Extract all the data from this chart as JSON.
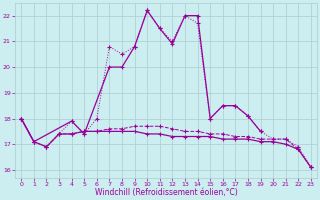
{
  "x": [
    0,
    1,
    2,
    3,
    4,
    5,
    6,
    7,
    8,
    9,
    10,
    11,
    12,
    13,
    14,
    15,
    16,
    17,
    18,
    19,
    20,
    21,
    22,
    23
  ],
  "line1_solid": [
    [
      0,
      18.0
    ],
    [
      1,
      17.1
    ],
    [
      4,
      17.9
    ],
    [
      5,
      17.4
    ],
    [
      7,
      20.0
    ],
    [
      8,
      20.0
    ],
    [
      9,
      20.8
    ],
    [
      10,
      22.2
    ],
    [
      11,
      21.5
    ],
    [
      12,
      20.9
    ],
    [
      13,
      22.0
    ],
    [
      14,
      22.0
    ],
    [
      15,
      18.0
    ],
    [
      16,
      18.5
    ],
    [
      17,
      18.5
    ],
    [
      18,
      18.1
    ],
    [
      19,
      17.5
    ]
  ],
  "line2_dotted": [
    [
      0,
      18.0
    ],
    [
      1,
      17.1
    ],
    [
      2,
      16.9
    ],
    [
      3,
      17.4
    ],
    [
      4,
      17.9
    ],
    [
      5,
      17.4
    ],
    [
      6,
      18.0
    ],
    [
      7,
      20.8
    ],
    [
      8,
      20.5
    ],
    [
      9,
      20.8
    ],
    [
      10,
      22.2
    ],
    [
      11,
      21.5
    ],
    [
      12,
      21.0
    ],
    [
      13,
      22.0
    ],
    [
      14,
      21.7
    ],
    [
      15,
      18.0
    ],
    [
      16,
      18.5
    ],
    [
      17,
      18.5
    ],
    [
      18,
      18.1
    ],
    [
      19,
      17.5
    ],
    [
      20,
      17.2
    ],
    [
      21,
      17.2
    ],
    [
      22,
      16.9
    ],
    [
      23,
      16.1
    ]
  ],
  "line3_solid": [
    [
      0,
      18.0
    ],
    [
      1,
      17.1
    ],
    [
      2,
      16.9
    ],
    [
      3,
      17.4
    ],
    [
      4,
      17.4
    ],
    [
      5,
      17.5
    ],
    [
      6,
      17.5
    ],
    [
      7,
      17.5
    ],
    [
      8,
      17.5
    ],
    [
      9,
      17.5
    ],
    [
      10,
      17.4
    ],
    [
      11,
      17.4
    ],
    [
      12,
      17.3
    ],
    [
      13,
      17.3
    ],
    [
      14,
      17.3
    ],
    [
      15,
      17.3
    ],
    [
      16,
      17.2
    ],
    [
      17,
      17.2
    ],
    [
      18,
      17.2
    ],
    [
      19,
      17.1
    ],
    [
      20,
      17.1
    ],
    [
      21,
      17.0
    ],
    [
      22,
      16.8
    ],
    [
      23,
      16.1
    ]
  ],
  "line4_dashed": [
    [
      0,
      18.0
    ],
    [
      1,
      17.1
    ],
    [
      2,
      16.9
    ],
    [
      3,
      17.4
    ],
    [
      4,
      17.4
    ],
    [
      5,
      17.5
    ],
    [
      6,
      17.5
    ],
    [
      7,
      17.6
    ],
    [
      8,
      17.6
    ],
    [
      9,
      17.7
    ],
    [
      10,
      17.7
    ],
    [
      11,
      17.7
    ],
    [
      12,
      17.6
    ],
    [
      13,
      17.5
    ],
    [
      14,
      17.5
    ],
    [
      15,
      17.4
    ],
    [
      16,
      17.4
    ],
    [
      17,
      17.3
    ],
    [
      18,
      17.3
    ],
    [
      19,
      17.2
    ],
    [
      20,
      17.2
    ],
    [
      21,
      17.2
    ],
    [
      22,
      16.8
    ],
    [
      23,
      16.1
    ]
  ],
  "ylim": [
    15.7,
    22.5
  ],
  "xlim": [
    -0.5,
    23.5
  ],
  "yticks": [
    16,
    17,
    18,
    19,
    20,
    21,
    22
  ],
  "xticks": [
    0,
    1,
    2,
    3,
    4,
    5,
    6,
    7,
    8,
    9,
    10,
    11,
    12,
    13,
    14,
    15,
    16,
    17,
    18,
    19,
    20,
    21,
    22,
    23
  ],
  "xlabel": "Windchill (Refroidissement éolien,°C)",
  "bg_color": "#cceef0",
  "line_color": "#990099",
  "grid_color": "#aacccc"
}
